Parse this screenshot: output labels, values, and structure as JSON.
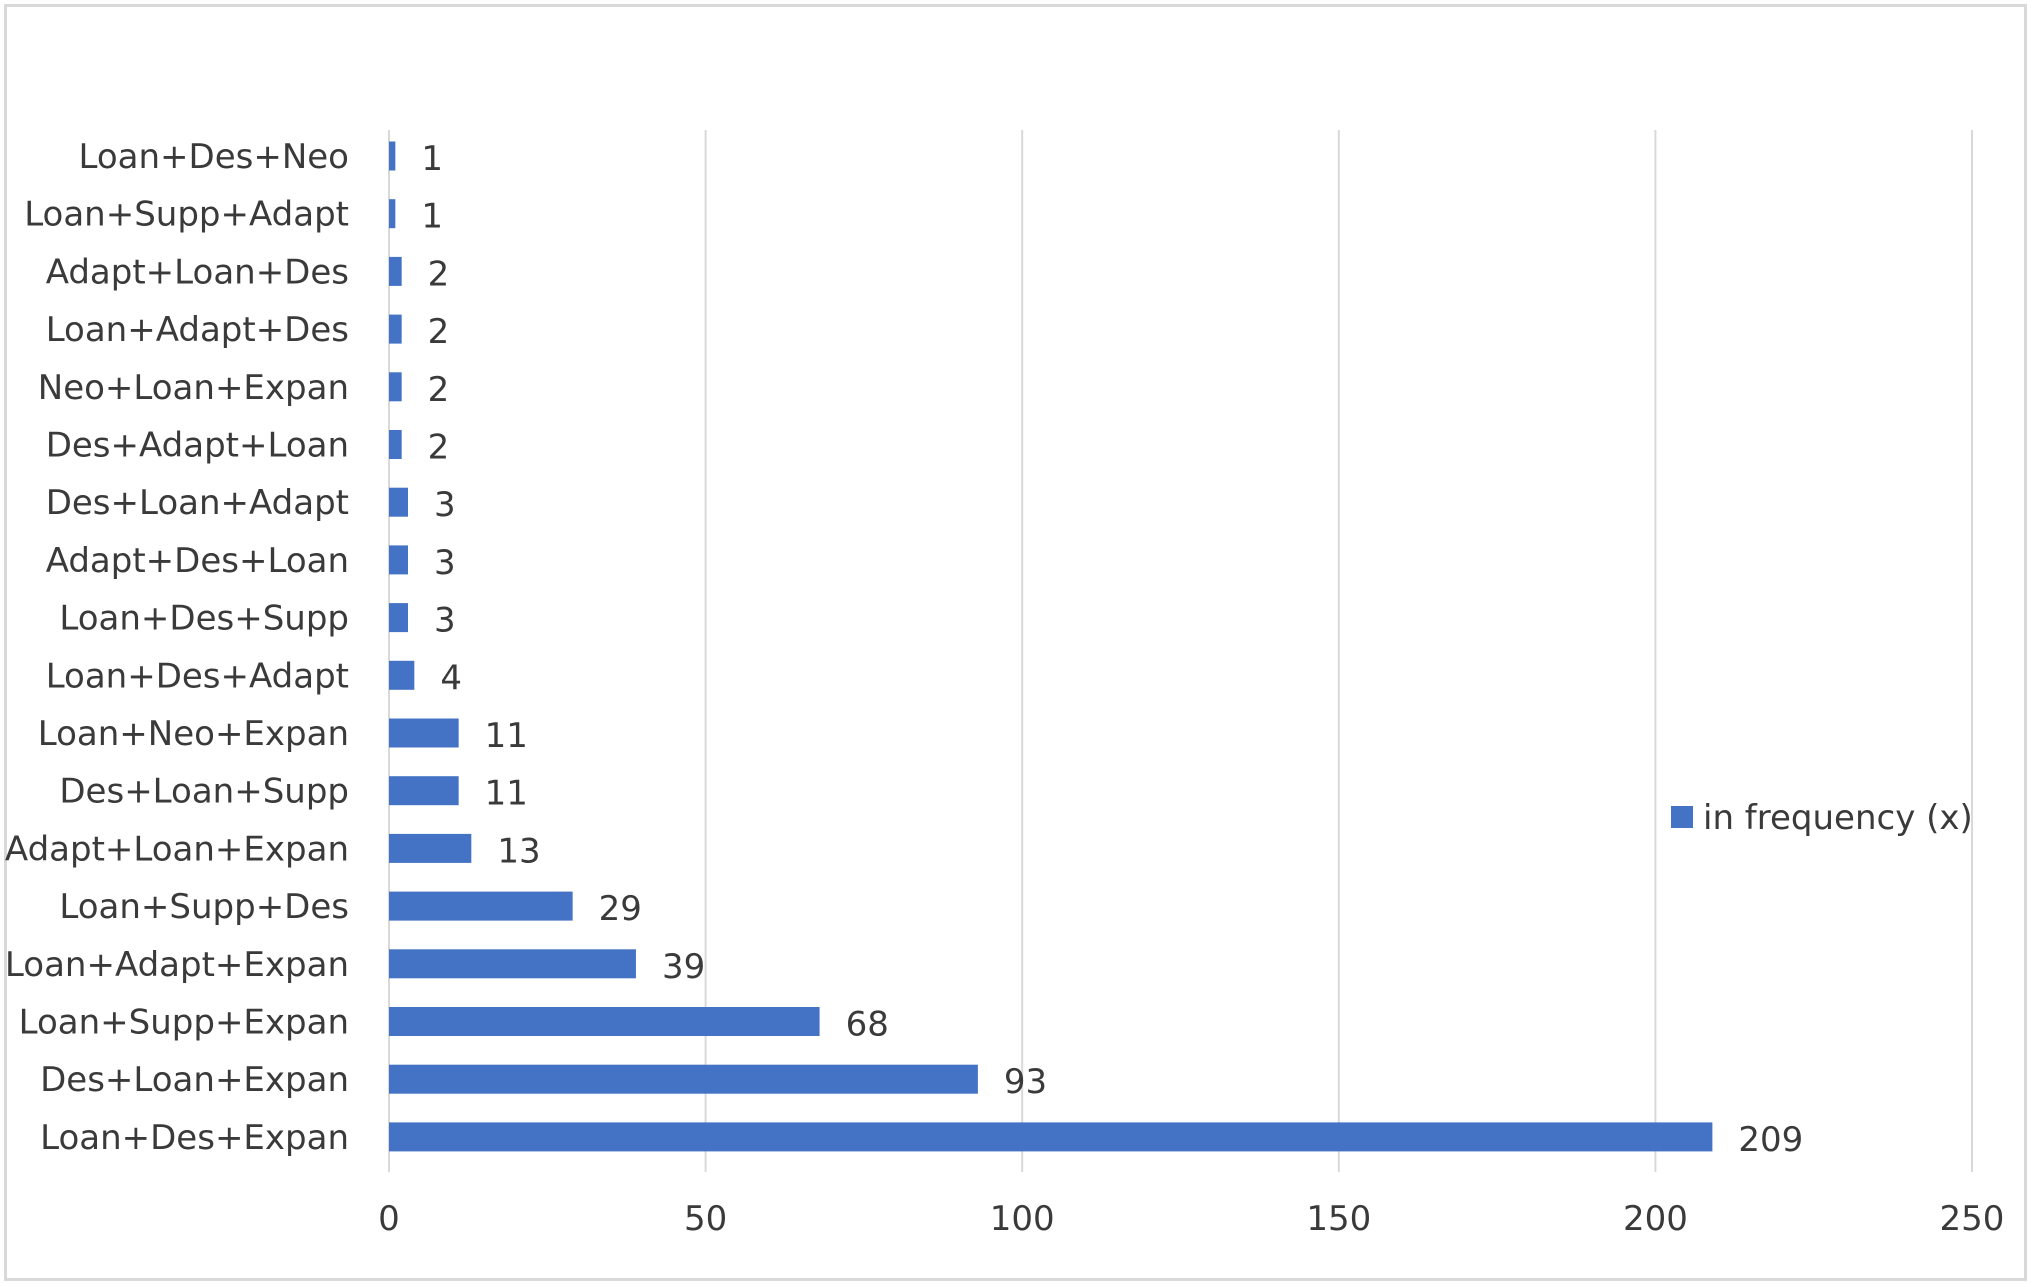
{
  "chart_data": {
    "type": "bar",
    "orientation": "horizontal",
    "title": "",
    "xlabel": "",
    "ylabel": "",
    "xlim": [
      0,
      250
    ],
    "x_ticks": [
      "0",
      "50",
      "100",
      "150",
      "200",
      "250"
    ],
    "grid": "vertical",
    "legend_position": "right",
    "bar_color": "#4472c4",
    "categories": [
      "Loan+Des+Neo",
      "Loan+Supp+Adapt",
      "Adapt+Loan+Des",
      "Loan+Adapt+Des",
      "Neo+Loan+Expan",
      "Des+Adapt+Loan",
      "Des+Loan+Adapt",
      "Adapt+Des+Loan",
      "Loan+Des+Supp",
      "Loan+Des+Adapt",
      "Loan+Neo+Expan",
      "Des+Loan+Supp",
      "Adapt+Loan+Expan",
      "Loan+Supp+Des",
      "Loan+Adapt+Expan",
      "Loan+Supp+Expan",
      "Des+Loan+Expan",
      "Loan+Des+Expan"
    ],
    "series": [
      {
        "name": "in frequency (x)",
        "values": [
          1,
          1,
          2,
          2,
          2,
          2,
          3,
          3,
          3,
          4,
          11,
          11,
          13,
          29,
          39,
          68,
          93,
          209
        ]
      }
    ]
  }
}
